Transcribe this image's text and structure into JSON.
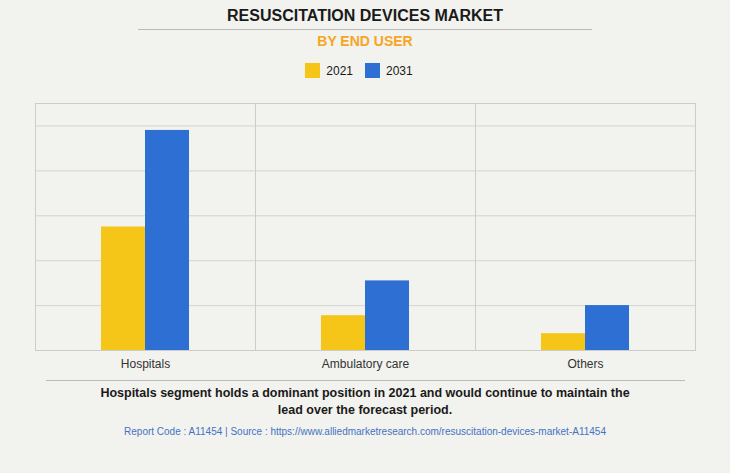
{
  "chart_data": {
    "type": "bar",
    "title": "RESUSCITATION DEVICES MARKET",
    "subtitle": "BY END USER",
    "categories": [
      "Hospitals",
      "Ambulatory care",
      "Others"
    ],
    "series": [
      {
        "name": "2021",
        "color": "#F5C518",
        "values": [
          5.5,
          1.55,
          0.75
        ]
      },
      {
        "name": "2031",
        "color": "#2E6FD4",
        "values": [
          9.8,
          3.1,
          2.0
        ]
      }
    ],
    "ylim": [
      0,
      11
    ],
    "yticks": [
      0,
      2,
      4,
      6,
      8,
      10
    ],
    "grid": true,
    "legend": "top",
    "tick_labels": "x",
    "annotations": [
      "Hospitals segment holds a dominant position in 2021 and would continue to maintain the\nlead over the forecast period.",
      "Report Code : A11454  |  Source : https://www.alliedmarketresearch.com/resuscitation-devices-market-A11454"
    ]
  }
}
